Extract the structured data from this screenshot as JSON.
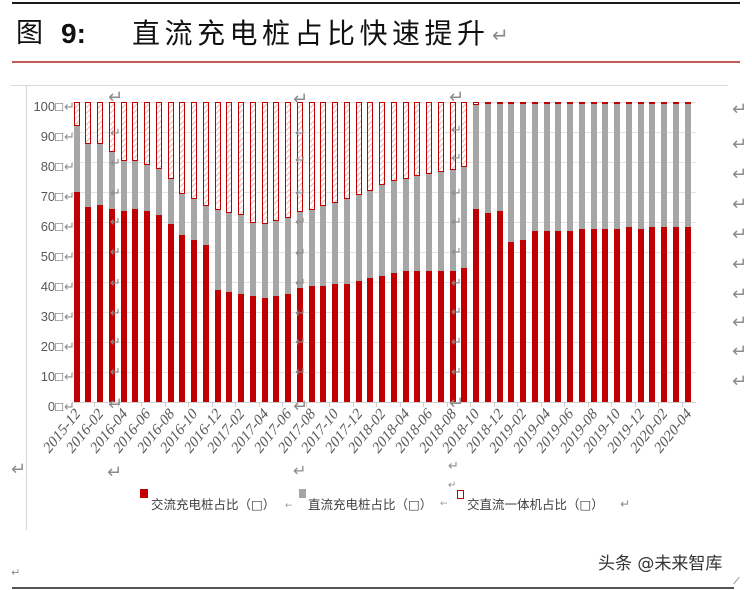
{
  "figure": {
    "label": "图",
    "number": "9:",
    "caption": "直流充电桩占比快速提升"
  },
  "marks": {
    "return": "↵",
    "arrow": "←"
  },
  "watermark": "头条 @未来智库",
  "colors": {
    "ac": "#c00000",
    "dc": "#a6a6a6",
    "combo_border": "#c00000",
    "title_rule": "#c55a5a"
  },
  "chart_data": {
    "type": "bar",
    "stacked": true,
    "title": "直流充电桩占比快速提升",
    "xlabel": "",
    "ylabel": "",
    "ylim": [
      0,
      100
    ],
    "grid": true,
    "legend_position": "bottom",
    "categories": [
      "2015-12",
      "2016-01",
      "2016-02",
      "2016-03",
      "2016-04",
      "2016-05",
      "2016-06",
      "2016-07",
      "2016-08",
      "2016-09",
      "2016-10",
      "2016-11",
      "2016-12",
      "2017-01",
      "2017-02",
      "2017-03",
      "2017-04",
      "2017-05",
      "2017-06",
      "2017-07",
      "2017-08",
      "2017-09",
      "2017-10",
      "2017-11",
      "2017-12",
      "2018-01",
      "2018-02",
      "2018-03",
      "2018-04",
      "2018-05",
      "2018-06",
      "2018-07",
      "2018-08",
      "2018-09",
      "2018-10",
      "2018-11",
      "2018-12",
      "2019-01",
      "2019-02",
      "2019-03",
      "2019-04",
      "2019-05",
      "2019-06",
      "2019-07",
      "2019-08",
      "2019-09",
      "2019-10",
      "2019-11",
      "2019-12",
      "2020-01",
      "2020-02",
      "2020-03",
      "2020-04"
    ],
    "x_tick_labels": [
      "2015-12",
      "2016-02",
      "2016-04",
      "2016-06",
      "2016-08",
      "2016-10",
      "2016-12",
      "2017-02",
      "2017-04",
      "2017-06",
      "2017-08",
      "2017-10",
      "2017-12",
      "2018-02",
      "2018-04",
      "2018-06",
      "2018-08",
      "2018-10",
      "2018-12",
      "2019-02",
      "2019-04",
      "2019-06",
      "2019-08",
      "2019-10",
      "2019-12",
      "2020-02",
      "2020-04"
    ],
    "y_tick_labels": [
      "0□",
      "10□",
      "20□",
      "30□",
      "40□",
      "50□",
      "60□",
      "70□",
      "80□",
      "90□",
      "100□"
    ],
    "series": [
      {
        "name": "交流充电桩占比（□）",
        "color": "#c00000",
        "pattern": "solid",
        "values": [
          70.0,
          65.0,
          65.8,
          64.3,
          63.8,
          64.3,
          63.7,
          62.3,
          59.4,
          55.8,
          54.1,
          52.2,
          37.5,
          36.7,
          36.0,
          35.4,
          34.7,
          35.4,
          36.0,
          38.1,
          38.8,
          38.8,
          39.4,
          39.4,
          40.5,
          41.2,
          41.9,
          43.1,
          43.8,
          43.8,
          43.8,
          43.8,
          43.8,
          44.6,
          64.3,
          62.9,
          63.7,
          53.4,
          54.0,
          57.1,
          57.1,
          57.1,
          57.1,
          57.8,
          57.6,
          57.6,
          57.6,
          58.3,
          57.6,
          58.3,
          58.3,
          58.3,
          58.3
        ]
      },
      {
        "name": "直流充电桩占比（□）",
        "color": "#a6a6a6",
        "pattern": "solid",
        "values": [
          22.0,
          21.0,
          20.2,
          19.0,
          16.5,
          16.0,
          15.4,
          15.5,
          14.8,
          13.6,
          13.7,
          13.0,
          26.5,
          26.2,
          26.2,
          24.4,
          24.5,
          24.9,
          25.4,
          25.3,
          25.2,
          26.5,
          26.8,
          28.2,
          28.6,
          29.0,
          30.4,
          30.7,
          30.6,
          31.4,
          32.3,
          33.0,
          33.6,
          33.6,
          34.7,
          36.6,
          35.8,
          46.1,
          45.5,
          42.4,
          42.4,
          42.4,
          42.4,
          41.7,
          41.9,
          41.9,
          41.9,
          41.2,
          41.9,
          41.2,
          41.2,
          41.2,
          41.2
        ]
      },
      {
        "name": "交直流一体机占比（□）",
        "color": "#c00000",
        "pattern": "hatched",
        "values": [
          8.0,
          14.0,
          14.0,
          16.7,
          19.7,
          19.7,
          20.9,
          22.2,
          25.8,
          30.6,
          32.2,
          34.8,
          36.0,
          37.1,
          37.8,
          40.2,
          40.8,
          39.7,
          38.6,
          36.6,
          36.0,
          34.7,
          33.8,
          32.4,
          30.9,
          29.8,
          27.7,
          26.2,
          25.6,
          24.8,
          23.9,
          23.2,
          22.6,
          21.8,
          1.0,
          0.5,
          0.5,
          0.5,
          0.5,
          0.5,
          0.5,
          0.5,
          0.5,
          0.5,
          0.5,
          0.5,
          0.5,
          0.5,
          0.5,
          0.5,
          0.5,
          0.5,
          0.5
        ]
      }
    ]
  }
}
